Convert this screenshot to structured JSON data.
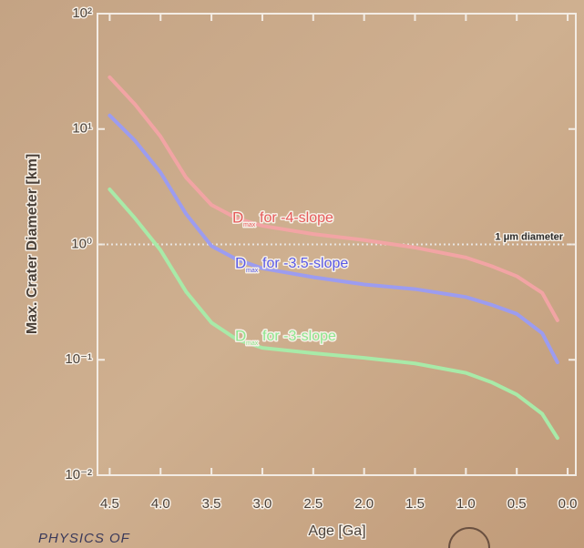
{
  "chart_data": {
    "type": "line",
    "xlabel": "Age [Ga]",
    "ylabel": "Max. Crater Diameter [km]",
    "x": [
      4.5,
      4.25,
      4.0,
      3.75,
      3.5,
      3.25,
      3.0,
      2.5,
      2.0,
      1.5,
      1.0,
      0.75,
      0.5,
      0.25,
      0.1
    ],
    "series": [
      {
        "name": "for -4-slope",
        "color": "#f2a4a4",
        "label_color": "#e65a5a",
        "values": [
          28.1,
          16.3,
          8.6,
          3.8,
          2.2,
          1.68,
          1.45,
          1.23,
          1.09,
          0.94,
          0.77,
          0.65,
          0.53,
          0.38,
          0.22
        ]
      },
      {
        "name": "for -3.5-slope",
        "color": "#9c9cf0",
        "label_color": "#5a5ae6",
        "values": [
          13.1,
          7.9,
          4.2,
          1.84,
          0.97,
          0.74,
          0.62,
          0.52,
          0.45,
          0.41,
          0.35,
          0.3,
          0.25,
          0.17,
          0.095
        ]
      },
      {
        "name": "for -3-slope",
        "color": "#a8eaa8",
        "label_color": "#8ee68e",
        "values": [
          3.0,
          1.68,
          0.89,
          0.39,
          0.21,
          0.15,
          0.127,
          0.114,
          0.104,
          0.093,
          0.077,
          0.064,
          0.05,
          0.034,
          0.021
        ]
      }
    ],
    "label_symbol": "D",
    "label_subscript": "max",
    "reference_line": {
      "value": 1,
      "label": "1 μm diameter"
    },
    "xlim": [
      4.62,
      -0.08
    ],
    "xticks": [
      4.5,
      {
        "value": 4,
        "label": "4.0"
      },
      3.5,
      {
        "value": 3,
        "label": "3.0"
      },
      2.5,
      {
        "value": 2,
        "label": "2.0"
      },
      1.5,
      {
        "value": 1,
        "label": "1.0"
      },
      0.5,
      {
        "value": 0,
        "label": "0.0"
      }
    ],
    "ylim": [
      0.01,
      100
    ],
    "yticks": [
      {
        "value": 0.01,
        "label": "10⁻²"
      },
      {
        "value": 0.1,
        "label": "10⁻¹"
      },
      {
        "value": 1,
        "label": "10⁰"
      },
      {
        "value": 10,
        "label": "10¹"
      },
      {
        "value": 100,
        "label": "10²"
      }
    ],
    "log_y": true,
    "footer": "PHYSICS OF"
  }
}
